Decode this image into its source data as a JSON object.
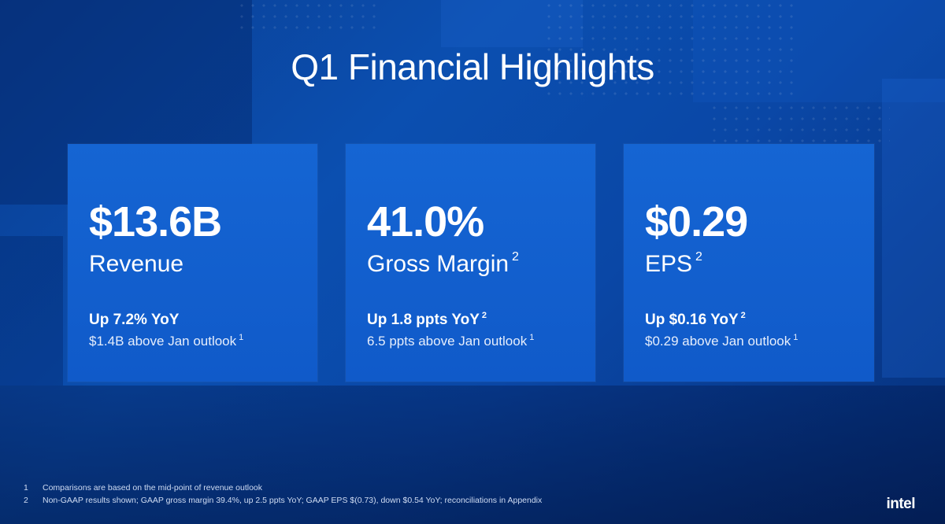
{
  "slide": {
    "title": "Q1 Financial Highlights"
  },
  "cards": [
    {
      "value": "$13.6B",
      "label": "Revenue",
      "label_footnote": "",
      "change": "Up 7.2% YoY",
      "change_footnote": "",
      "note": "$1.4B above Jan outlook",
      "note_footnote": "1"
    },
    {
      "value": "41.0%",
      "label": "Gross Margin",
      "label_footnote": "2",
      "change": "Up 1.8 ppts YoY",
      "change_footnote": "2",
      "note": "6.5 ppts above Jan outlook",
      "note_footnote": "1"
    },
    {
      "value": "$0.29",
      "label": "EPS",
      "label_footnote": "2",
      "change": "Up $0.16 YoY",
      "change_footnote": "2",
      "note": "$0.29 above Jan outlook",
      "note_footnote": "1"
    }
  ],
  "footnotes": [
    {
      "num": "1",
      "text": "Comparisons are based on the mid-point of revenue outlook"
    },
    {
      "num": "2",
      "text": "Non-GAAP results shown; GAAP gross margin 39.4%, up 2.5 ppts YoY; GAAP EPS $(0.73), down $0.54 YoY; reconciliations in Appendix"
    }
  ],
  "logo": {
    "text": "intel"
  },
  "colors": {
    "background": "#0b4fb0",
    "card": "#1565d3",
    "text": "#ffffff"
  }
}
